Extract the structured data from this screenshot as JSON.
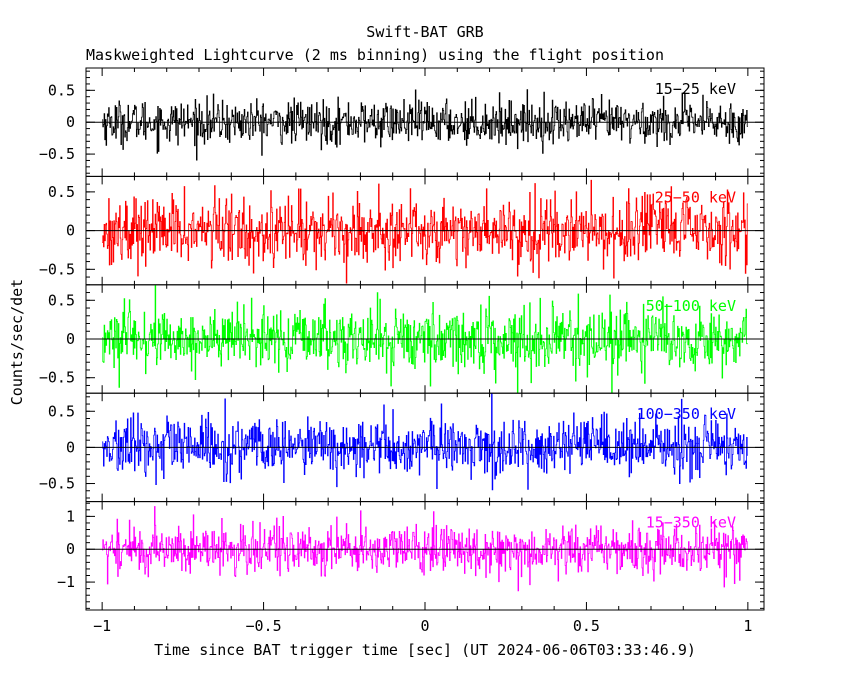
{
  "chart_data": {
    "type": "line",
    "title": "Swift-BAT GRB",
    "subtitle": "Maskweighted Lightcurve (2 ms binning) using the flight position",
    "xlabel": "Time since BAT trigger time [sec] (UT 2024-06-06T03:33:46.9)",
    "ylabel": "Counts/sec/det",
    "xlim": [
      -1.05,
      1.05
    ],
    "x_ticks": [
      -1,
      -0.5,
      0,
      0.5,
      1
    ],
    "x_tick_labels": [
      "−1",
      "−0.5",
      "0",
      "0.5",
      "1"
    ],
    "bin_width_sec": 0.002,
    "data_range": [
      -1.0,
      1.0
    ],
    "panels": [
      {
        "name": "15-25 keV",
        "label": "15−25 keV",
        "color": "#000000",
        "ylim": [
          -0.85,
          0.85
        ],
        "y_ticks": [
          -0.5,
          0,
          0.5
        ],
        "y_tick_labels": [
          "−0.5",
          "0",
          "0.5"
        ],
        "noise_sigma": 0.17
      },
      {
        "name": "25-50 keV",
        "label": "25−50 keV",
        "color": "#ff0000",
        "ylim": [
          -0.7,
          0.7
        ],
        "y_ticks": [
          -0.5,
          0,
          0.5
        ],
        "y_tick_labels": [
          "−0.5",
          "0",
          "0.5"
        ],
        "noise_sigma": 0.22
      },
      {
        "name": "50-100 keV",
        "label": "50−100 keV",
        "color": "#00ff00",
        "ylim": [
          -0.7,
          0.7
        ],
        "y_ticks": [
          -0.5,
          0,
          0.5
        ],
        "y_tick_labels": [
          "−0.5",
          "0",
          "0.5"
        ],
        "noise_sigma": 0.2
      },
      {
        "name": "100-350 keV",
        "label": "100−350 keV",
        "color": "#0000ff",
        "ylim": [
          -0.75,
          0.75
        ],
        "y_ticks": [
          -0.5,
          0,
          0.5
        ],
        "y_tick_labels": [
          "−0.5",
          "0",
          "0.5"
        ],
        "noise_sigma": 0.2
      },
      {
        "name": "15-350 keV",
        "label": "15−350 keV",
        "color": "#ff00ff",
        "ylim": [
          -1.85,
          1.45
        ],
        "y_ticks": [
          -1,
          0,
          1
        ],
        "y_tick_labels": [
          "−1",
          "0",
          "1"
        ],
        "noise_sigma": 0.38
      }
    ]
  }
}
